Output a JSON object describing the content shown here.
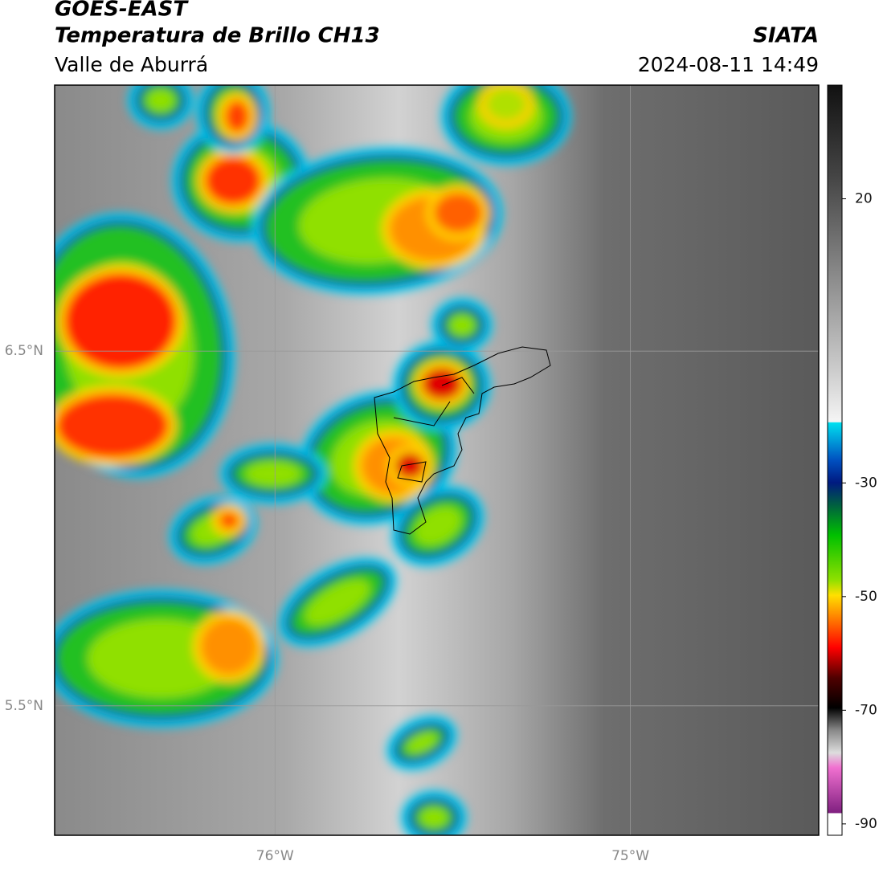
{
  "header": {
    "title": "GOES-EAST",
    "subtitle": "Temperatura de Brillo CH13",
    "region": "Valle de Aburrá",
    "source": "SIATA",
    "datetime": "2024-08-11 14:49"
  },
  "map": {
    "xlim": [
      -76.62,
      -74.47
    ],
    "ylim": [
      5.135,
      7.25
    ],
    "xticks": [
      {
        "value": -76,
        "label": "76°W"
      },
      {
        "value": -75,
        "label": "75°W"
      }
    ],
    "yticks": [
      {
        "value": 6.5,
        "label": "6.5°N"
      },
      {
        "value": 5.5,
        "label": "5.5°N"
      }
    ]
  },
  "colorbar": {
    "lim": [
      -92,
      40
    ],
    "ticks": [
      20,
      -30,
      -50,
      -70,
      -90
    ]
  }
}
